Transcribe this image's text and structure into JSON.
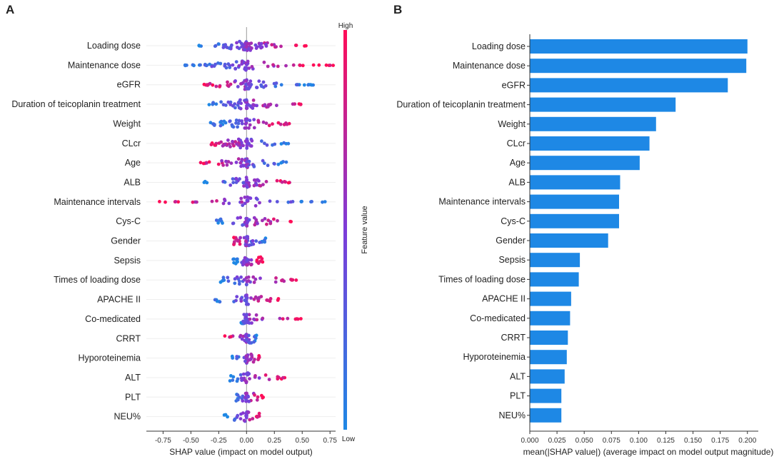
{
  "chart_data": [
    {
      "panel": "A",
      "type": "scatter",
      "subtype": "shap-beeswarm",
      "xlabel": "SHAP value (impact on model output)",
      "xlim": [
        -0.9,
        0.8
      ],
      "xticks": [
        -0.75,
        -0.5,
        -0.25,
        0.0,
        0.25,
        0.5,
        0.75
      ],
      "xtick_labels": [
        "-0.75",
        "-0.50",
        "-0.25",
        "0.00",
        "0.25",
        "0.50",
        "0.75"
      ],
      "colorbar": {
        "title": "Feature value",
        "high": "High",
        "low": "Low",
        "low_color": "#1e88e5",
        "high_color": "#ff0d57"
      },
      "features": [
        {
          "name": "Loading dose",
          "min": -0.45,
          "max": 0.55,
          "high_side": "positive",
          "density": 70
        },
        {
          "name": "Maintenance dose",
          "min": -0.6,
          "max": 0.78,
          "high_side": "positive",
          "density": 70
        },
        {
          "name": "eGFR",
          "min": -0.4,
          "max": 0.6,
          "high_side": "negative",
          "density": 66
        },
        {
          "name": "Duration of teicoplanin treatment",
          "min": -0.35,
          "max": 0.52,
          "high_side": "positive",
          "density": 60
        },
        {
          "name": "Weight",
          "min": -0.35,
          "max": 0.42,
          "high_side": "positive",
          "density": 55
        },
        {
          "name": "CLcr",
          "min": -0.35,
          "max": 0.38,
          "high_side": "negative",
          "density": 52
        },
        {
          "name": "Age",
          "min": -0.45,
          "max": 0.38,
          "high_side": "negative",
          "density": 50
        },
        {
          "name": "ALB",
          "min": -0.4,
          "max": 0.4,
          "high_side": "positive",
          "density": 48
        },
        {
          "name": "Maintenance intervals",
          "min": -0.8,
          "max": 0.75,
          "high_side": "negative",
          "density": 42
        },
        {
          "name": "Cys-C",
          "min": -0.3,
          "max": 0.4,
          "high_side": "positive",
          "density": 40
        },
        {
          "name": "Gender",
          "min": -0.12,
          "max": 0.18,
          "high_side": "negative",
          "density": 45
        },
        {
          "name": "Sepsis",
          "min": -0.12,
          "max": 0.15,
          "high_side": "positive",
          "density": 38
        },
        {
          "name": "Times of loading dose",
          "min": -0.25,
          "max": 0.45,
          "high_side": "positive",
          "density": 38
        },
        {
          "name": "APACHE II",
          "min": -0.3,
          "max": 0.3,
          "high_side": "positive",
          "density": 36
        },
        {
          "name": "Co-medicated",
          "min": -0.05,
          "max": 0.52,
          "high_side": "positive",
          "density": 38
        },
        {
          "name": "CRRT",
          "min": -0.2,
          "max": 0.1,
          "high_side": "negative",
          "density": 34
        },
        {
          "name": "Hyporoteinemia",
          "min": -0.15,
          "max": 0.12,
          "high_side": "positive",
          "density": 32
        },
        {
          "name": "ALT",
          "min": -0.15,
          "max": 0.38,
          "high_side": "positive",
          "density": 32
        },
        {
          "name": "PLT",
          "min": -0.1,
          "max": 0.16,
          "high_side": "positive",
          "density": 30
        },
        {
          "name": "NEU%",
          "min": -0.2,
          "max": 0.12,
          "high_side": "positive",
          "density": 30
        }
      ]
    },
    {
      "panel": "B",
      "type": "bar",
      "orientation": "horizontal",
      "xlabel": "mean(|SHAP value|) (average impact on model output magnitude)",
      "xlim": [
        0,
        0.21
      ],
      "xticks": [
        0.0,
        0.025,
        0.05,
        0.075,
        0.1,
        0.125,
        0.15,
        0.175,
        0.2
      ],
      "xtick_labels": [
        "0.000",
        "0.025",
        "0.050",
        "0.075",
        "0.100",
        "0.125",
        "0.150",
        "0.175",
        "0.200"
      ],
      "bar_color": "#1e88e5",
      "categories": [
        "Loading dose",
        "Maintenance dose",
        "eGFR",
        "Duration of teicoplanin treatment",
        "Weight",
        "CLcr",
        "Age",
        "ALB",
        "Maintenance intervals",
        "Cys-C",
        "Gender",
        "Sepsis",
        "Times of loading dose",
        "APACHE II",
        "Co-medicated",
        "CRRT",
        "Hyporoteinemia",
        "ALT",
        "PLT",
        "NEU%"
      ],
      "values": [
        0.2,
        0.199,
        0.182,
        0.134,
        0.116,
        0.11,
        0.101,
        0.083,
        0.082,
        0.082,
        0.072,
        0.046,
        0.045,
        0.038,
        0.037,
        0.035,
        0.034,
        0.032,
        0.029,
        0.029
      ]
    }
  ]
}
